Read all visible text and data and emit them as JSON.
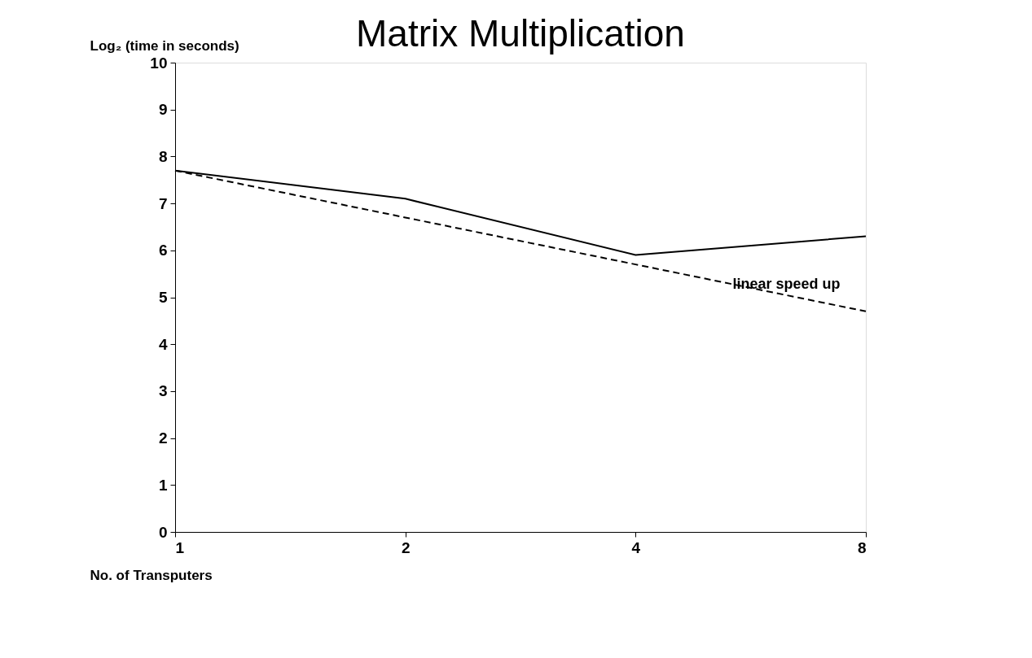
{
  "chart_data": {
    "type": "line",
    "title": "Matrix Multiplication",
    "xlabel": "No. of Transputers",
    "ylabel": "Log₂ (time in seconds)",
    "x": [
      1,
      2,
      4,
      8
    ],
    "log": "x",
    "xlim": [
      1,
      8
    ],
    "xticks": [
      1,
      2,
      4,
      8
    ],
    "ylim": [
      0,
      10
    ],
    "yticks": [
      0,
      1,
      2,
      3,
      4,
      5,
      6,
      7,
      8,
      9,
      10
    ],
    "grid": false,
    "marker": "none",
    "series": [
      {
        "color": "#000000",
        "values": [
          7.7,
          7.1,
          5.9,
          6.3
        ],
        "line_style": "solid"
      },
      {
        "color": "#000000",
        "values": [
          7.7,
          6.7,
          5.7,
          4.7
        ],
        "line_style": "dashed"
      }
    ],
    "annotations": [
      {
        "text": "linear speed up",
        "x": 6.3,
        "y": 5.0
      }
    ]
  }
}
